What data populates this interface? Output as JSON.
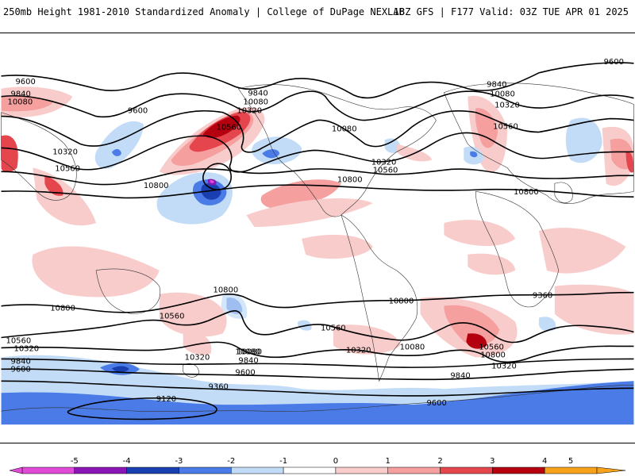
{
  "header": {
    "left_title": "250mb Height 1981-2010 Standardized Anomaly | College of DuPage NEXLAB",
    "right_title": "18Z GFS | F177 Valid: 03Z TUE APR 01 2025"
  },
  "map": {
    "product": "250mb Height Standardized Anomaly",
    "contour_labels": [
      "9600",
      "9840",
      "10080",
      "9600",
      "10320",
      "10560",
      "10800",
      "9840",
      "10080",
      "10320",
      "10560",
      "10080",
      "10320",
      "10560",
      "10800",
      "9840",
      "10080",
      "10320",
      "10560",
      "10800",
      "9600",
      "10800",
      "10800",
      "10560",
      "10560",
      "10320",
      "10080",
      "10800",
      "10560",
      "10320",
      "9840",
      "9600",
      "10080",
      "9840",
      "9600",
      "9360",
      "9120",
      "10320",
      "10080",
      "10560",
      "10800",
      "10320",
      "9840",
      "9600",
      "9360"
    ]
  },
  "colorbar": {
    "tick_labels": [
      "-5",
      "-4",
      "-3",
      "-2",
      "-1",
      "0",
      "1",
      "2",
      "3",
      "4",
      "5"
    ],
    "colors": [
      "#e14bd8",
      "#8a16b6",
      "#1a3fb0",
      "#4a7be6",
      "#c2dcf7",
      "#ffffff",
      "#f9cccc",
      "#f59f9f",
      "#e5454c",
      "#b50010",
      "#f7a21b"
    ]
  }
}
